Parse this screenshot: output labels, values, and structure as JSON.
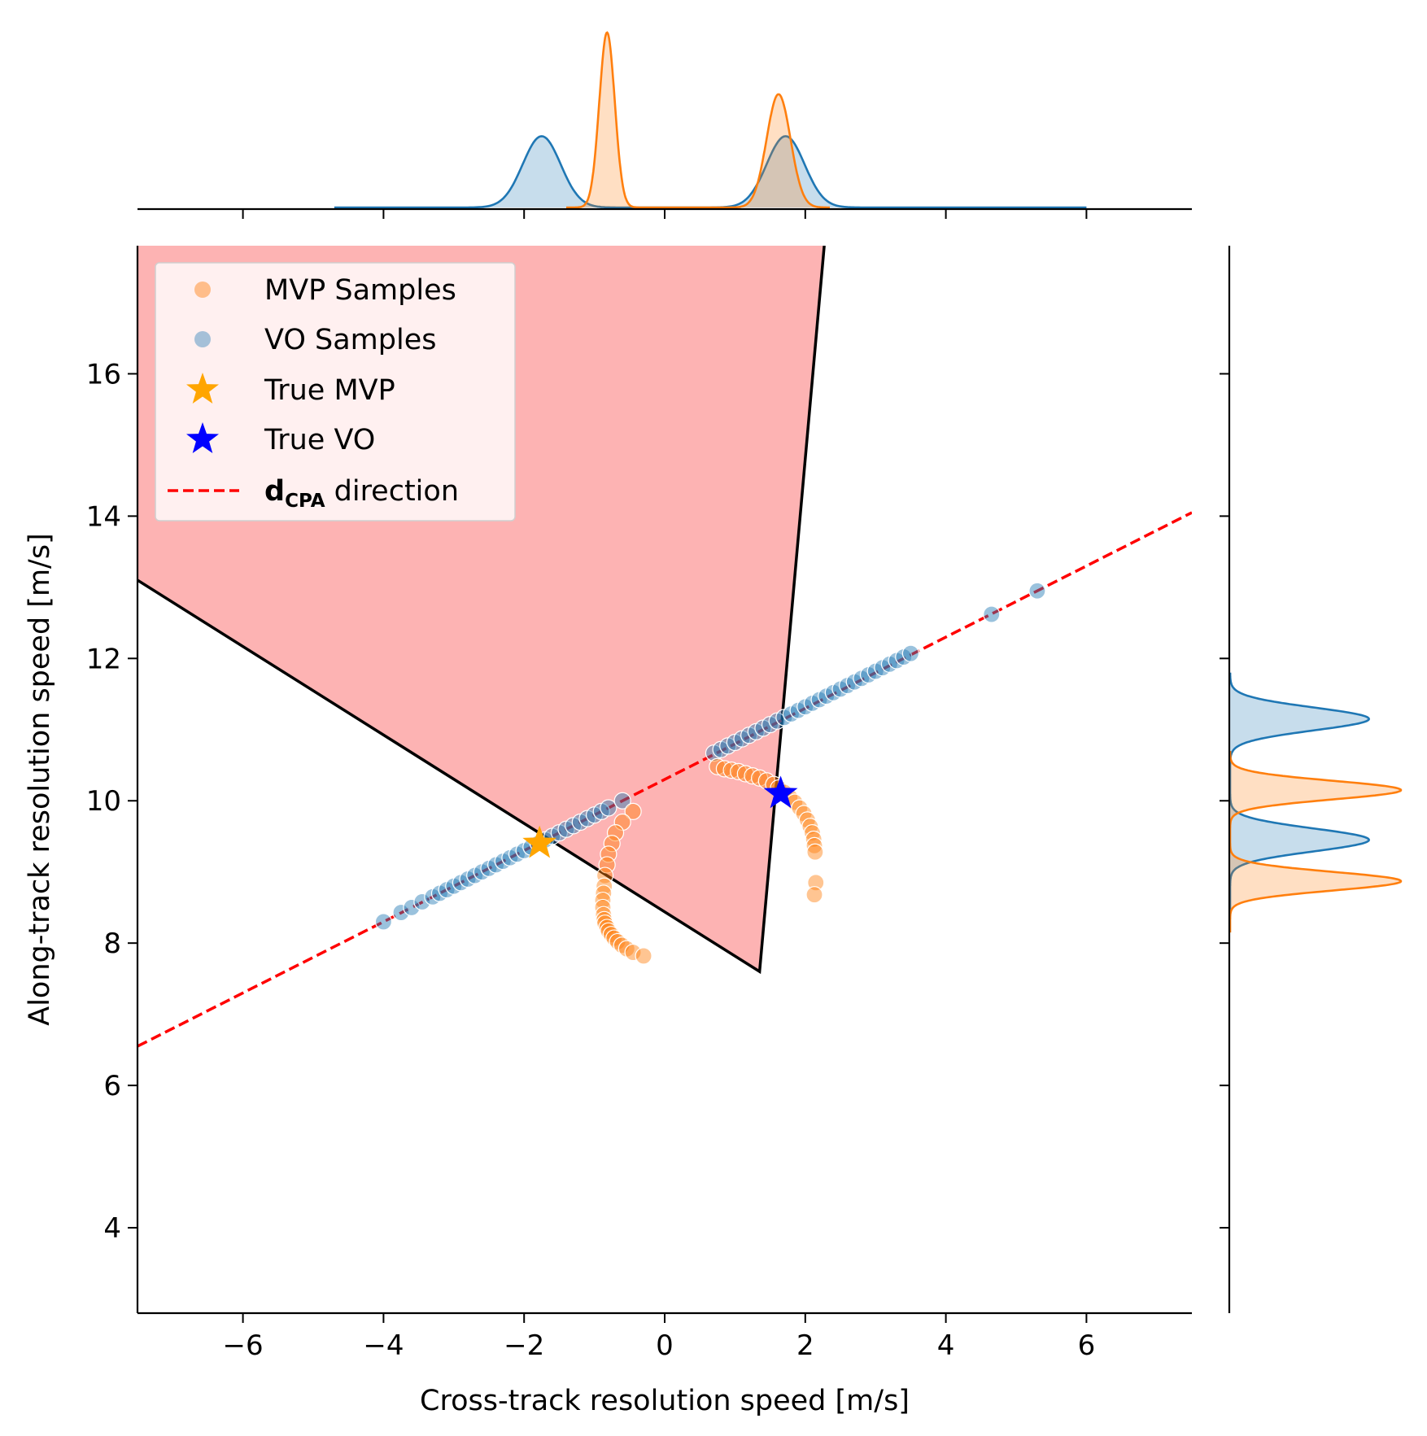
{
  "chart_data": {
    "type": "scatter",
    "title": "",
    "xlabel": "Cross-track resolution speed [m/s]",
    "ylabel": "Along-track resolution speed [m/s]",
    "xlim": [
      -7.5,
      7.5
    ],
    "ylim": [
      2.8,
      17.8
    ],
    "xticks": [
      -6,
      -4,
      -2,
      0,
      2,
      4,
      6
    ],
    "yticks": [
      4,
      6,
      8,
      10,
      12,
      14,
      16
    ],
    "xtick_labels": [
      "−6",
      "−4",
      "−2",
      "0",
      "2",
      "4",
      "6"
    ],
    "ytick_labels": [
      "4",
      "6",
      "8",
      "10",
      "12",
      "14",
      "16"
    ],
    "grid": false,
    "legend_position": "top-left",
    "legend": [
      {
        "label": "MVP Samples",
        "marker": "circle",
        "color": "#ff7f0e"
      },
      {
        "label": "VO Samples",
        "marker": "circle",
        "color": "#1f77b4"
      },
      {
        "label": "True MVP",
        "marker": "star",
        "color": "#ffa500"
      },
      {
        "label": "True VO",
        "marker": "star",
        "color": "#0000ff"
      },
      {
        "label_main": "d",
        "label_sub": "CPA",
        "label_rest": " direction",
        "marker": "dashed-line",
        "color": "#ff0000"
      }
    ],
    "region": {
      "color": "#fdb3b3",
      "edge_color": "#000000",
      "apex": [
        1.35,
        7.6
      ],
      "left_edge": [
        [
          -7.5,
          13.1
        ],
        [
          1.35,
          7.6
        ]
      ],
      "right_edge": [
        [
          1.35,
          7.6
        ],
        [
          2.27,
          17.8
        ]
      ]
    },
    "dcpa_line": {
      "color": "#ff0000",
      "x": [
        -7.5,
        7.5
      ],
      "y": [
        6.55,
        14.05
      ]
    },
    "true_mvp": {
      "x": -1.78,
      "y": 9.4,
      "color": "#ffa500"
    },
    "true_vo": {
      "x": 1.65,
      "y": 10.1,
      "color": "#0000ff"
    },
    "series": [
      {
        "name": "VO Samples",
        "color": "#1f77b4",
        "x": [
          -4.0,
          -3.75,
          -3.6,
          -3.45,
          -3.3,
          -3.2,
          -3.1,
          -3.0,
          -2.9,
          -2.8,
          -2.7,
          -2.6,
          -2.5,
          -2.4,
          -2.3,
          -2.2,
          -2.1,
          -2.0,
          -1.9,
          -1.8,
          -1.7,
          -1.6,
          -1.5,
          -1.4,
          -1.3,
          -1.2,
          -1.1,
          -1.0,
          -0.9,
          -0.8,
          -0.6,
          0.7,
          0.8,
          0.9,
          1.0,
          1.1,
          1.2,
          1.3,
          1.4,
          1.5,
          1.6,
          1.7,
          1.8,
          1.9,
          2.0,
          2.1,
          2.2,
          2.3,
          2.4,
          2.5,
          2.6,
          2.7,
          2.8,
          2.9,
          3.0,
          3.1,
          3.2,
          3.3,
          3.4,
          3.5,
          4.65,
          5.3
        ],
        "y": [
          8.3,
          8.43,
          8.5,
          8.58,
          8.65,
          8.7,
          8.75,
          8.8,
          8.85,
          8.9,
          8.95,
          9.0,
          9.05,
          9.1,
          9.15,
          9.2,
          9.25,
          9.3,
          9.35,
          9.4,
          9.45,
          9.5,
          9.55,
          9.6,
          9.65,
          9.7,
          9.75,
          9.8,
          9.85,
          9.9,
          10.0,
          10.67,
          10.72,
          10.77,
          10.82,
          10.87,
          10.92,
          10.97,
          11.02,
          11.07,
          11.12,
          11.17,
          11.22,
          11.27,
          11.32,
          11.37,
          11.42,
          11.47,
          11.52,
          11.57,
          11.62,
          11.67,
          11.72,
          11.77,
          11.82,
          11.87,
          11.92,
          11.97,
          12.02,
          12.07,
          12.62,
          12.95
        ]
      },
      {
        "name": "MVP Samples",
        "color": "#ff7f0e",
        "x": [
          -0.45,
          -0.6,
          -0.7,
          -0.75,
          -0.8,
          -0.82,
          -0.85,
          -0.86,
          -0.87,
          -0.88,
          -0.88,
          -0.87,
          -0.86,
          -0.85,
          -0.82,
          -0.8,
          -0.76,
          -0.72,
          -0.67,
          -0.61,
          -0.54,
          -0.45,
          -0.3,
          0.75,
          0.85,
          0.95,
          1.05,
          1.15,
          1.25,
          1.35,
          1.45,
          1.55,
          1.62,
          1.7,
          1.78,
          1.85,
          1.92,
          1.98,
          2.03,
          2.07,
          2.1,
          2.12,
          2.13,
          2.14,
          2.15,
          2.13
        ],
        "y": [
          9.85,
          9.7,
          9.55,
          9.4,
          9.25,
          9.1,
          8.95,
          8.8,
          8.7,
          8.6,
          8.5,
          8.4,
          8.33,
          8.28,
          8.22,
          8.17,
          8.12,
          8.07,
          8.02,
          7.97,
          7.92,
          7.87,
          7.82,
          10.48,
          10.45,
          10.43,
          10.41,
          10.38,
          10.35,
          10.32,
          10.28,
          10.23,
          10.18,
          10.12,
          10.05,
          9.98,
          9.9,
          9.82,
          9.73,
          9.64,
          9.55,
          9.46,
          9.37,
          9.28,
          8.85,
          8.68
        ]
      }
    ],
    "marginal_top": [
      {
        "name": "VO Samples",
        "color": "#1f77b4",
        "components": [
          {
            "mean": -1.75,
            "sd": 0.27,
            "weight": 0.5
          },
          {
            "mean": 1.72,
            "sd": 0.27,
            "weight": 0.5
          }
        ],
        "xrange": [
          -4.7,
          6.0
        ]
      },
      {
        "name": "MVP Samples",
        "color": "#ff7f0e",
        "components": [
          {
            "mean": -0.82,
            "sd": 0.11,
            "weight": 0.5
          },
          {
            "mean": 1.62,
            "sd": 0.17,
            "weight": 0.5
          }
        ],
        "xrange": [
          -1.4,
          2.35
        ]
      }
    ],
    "marginal_right": [
      {
        "name": "VO Samples",
        "color": "#1f77b4",
        "components": [
          {
            "mean": 9.45,
            "sd": 0.16,
            "weight": 0.5
          },
          {
            "mean": 11.15,
            "sd": 0.16,
            "weight": 0.5
          }
        ],
        "yrange": [
          8.4,
          11.8
        ]
      },
      {
        "name": "MVP Samples",
        "color": "#ff7f0e",
        "components": [
          {
            "mean": 8.87,
            "sd": 0.13,
            "weight": 0.5
          },
          {
            "mean": 10.15,
            "sd": 0.13,
            "weight": 0.5
          }
        ],
        "yrange": [
          8.15,
          10.7
        ]
      }
    ]
  }
}
